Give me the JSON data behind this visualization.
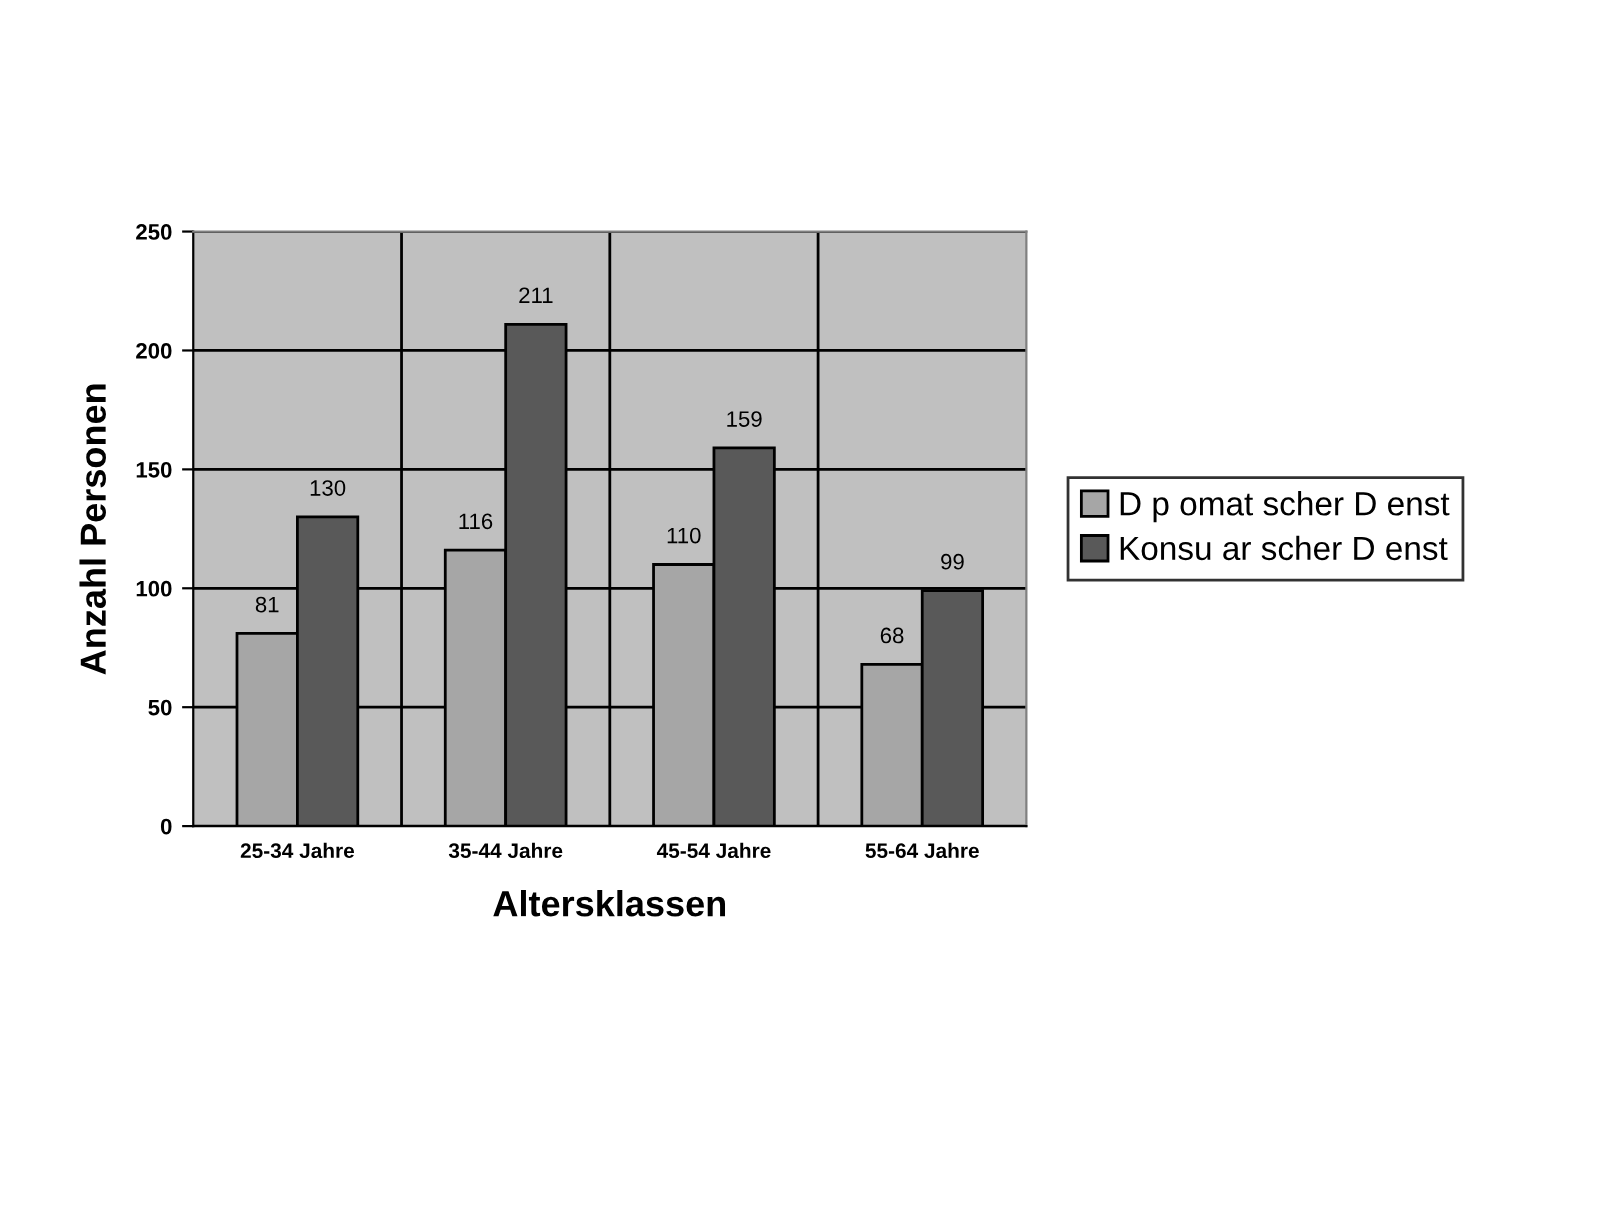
{
  "chart_data": {
    "type": "bar",
    "xlabel": "Altersklassen",
    "ylabel": "Anzahl Personen",
    "categories": [
      "25-34 Jahre",
      "35-44 Jahre",
      "45-54 Jahre",
      "55-64 Jahre"
    ],
    "series": [
      {
        "name": "D p omat scher D enst",
        "color": "#a6a6a6",
        "values": [
          81,
          116,
          110,
          68
        ]
      },
      {
        "name": "Konsu ar scher D enst",
        "color": "#595959",
        "values": [
          130,
          211,
          159,
          99
        ]
      }
    ],
    "ylim": [
      0,
      250
    ],
    "yticks": [
      0,
      50,
      100,
      150,
      200,
      250
    ],
    "grid": true,
    "legend": "right",
    "data_labels": true
  }
}
